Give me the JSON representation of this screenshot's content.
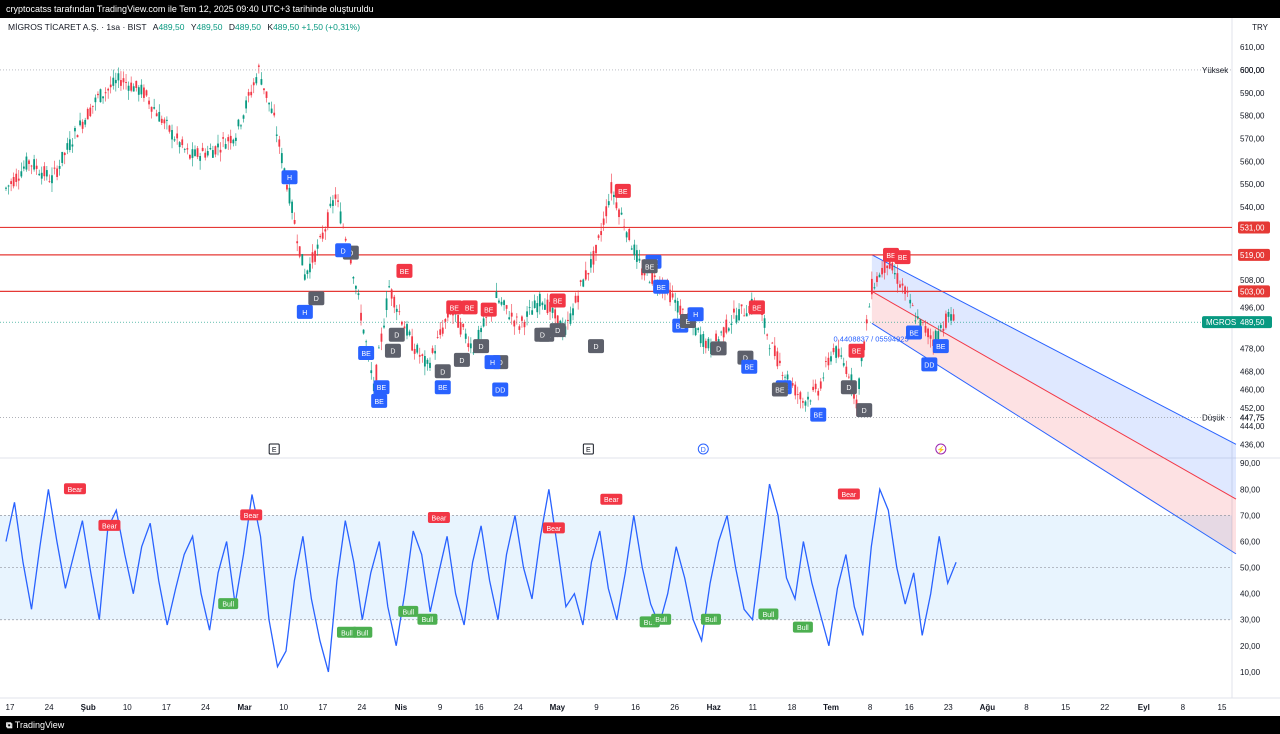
{
  "header": {
    "attribution": "cryptocatss tarafından TradingView.com ile Tem 12, 2025 09:40 UTC+3 tarihinde oluşturuldu"
  },
  "symbol": {
    "name": "MİGROS TİCARET A.Ş. · 1sa · BIST",
    "open_label": "A",
    "open": "489,50",
    "high_label": "Y",
    "high": "489,50",
    "low_label": "D",
    "low": "489,50",
    "close_label": "K",
    "close": "489,50",
    "change": "+1,50 (+0,31%)",
    "currency": "TRY"
  },
  "footer": {
    "brand": "TradingView"
  },
  "colors": {
    "up": "#089981",
    "down": "#f23645",
    "rsi": "#2962ff",
    "level_line": "#e53935",
    "badge_bear": "#f23645",
    "badge_bull": "#4caf50",
    "badge_blue": "#2962ff",
    "badge_gray": "#5d606b"
  },
  "chart_data": [
    {
      "type": "candlestick",
      "title": "MİGROS TİCARET A.Ş. · 1sa · BIST",
      "ylim": [
        430,
        614
      ],
      "y_ticks": [
        "610,00",
        "600,00",
        "590,00",
        "580,00",
        "570,00",
        "560,00",
        "550,00",
        "540,00",
        "531,00",
        "519,00",
        "508,00",
        "503,00",
        "496,00",
        "489,50",
        "478,00",
        "468,00",
        "460,00",
        "452,00",
        "447,75",
        "444,00",
        "436,00"
      ],
      "x_ticks": [
        "17",
        "24",
        "Şub",
        "10",
        "17",
        "24",
        "Mar",
        "10",
        "17",
        "24",
        "Nis",
        "9",
        "16",
        "24",
        "May",
        "9",
        "16",
        "26",
        "Haz",
        "11",
        "18",
        "Tem",
        "8",
        "16",
        "23",
        "Ağu",
        "8",
        "15",
        "22",
        "Eyl",
        "8",
        "15"
      ],
      "price_path": [
        {
          "x": 0,
          "y": 548
        },
        {
          "x": 3,
          "y": 560
        },
        {
          "x": 6,
          "y": 552
        },
        {
          "x": 9,
          "y": 572
        },
        {
          "x": 12,
          "y": 588
        },
        {
          "x": 15,
          "y": 596
        },
        {
          "x": 18,
          "y": 590
        },
        {
          "x": 21,
          "y": 575
        },
        {
          "x": 24,
          "y": 562
        },
        {
          "x": 27,
          "y": 565
        },
        {
          "x": 30,
          "y": 572
        },
        {
          "x": 33,
          "y": 600
        },
        {
          "x": 35,
          "y": 578
        },
        {
          "x": 37,
          "y": 545
        },
        {
          "x": 39,
          "y": 510
        },
        {
          "x": 41,
          "y": 524
        },
        {
          "x": 43,
          "y": 545
        },
        {
          "x": 45,
          "y": 518
        },
        {
          "x": 47,
          "y": 480
        },
        {
          "x": 48,
          "y": 460
        },
        {
          "x": 50,
          "y": 505
        },
        {
          "x": 53,
          "y": 480
        },
        {
          "x": 55,
          "y": 470
        },
        {
          "x": 58,
          "y": 495
        },
        {
          "x": 61,
          "y": 478
        },
        {
          "x": 64,
          "y": 500
        },
        {
          "x": 67,
          "y": 488
        },
        {
          "x": 70,
          "y": 500
        },
        {
          "x": 73,
          "y": 485
        },
        {
          "x": 75,
          "y": 505
        },
        {
          "x": 77,
          "y": 520
        },
        {
          "x": 79,
          "y": 548
        },
        {
          "x": 81,
          "y": 530
        },
        {
          "x": 83,
          "y": 512
        },
        {
          "x": 86,
          "y": 505
        },
        {
          "x": 89,
          "y": 490
        },
        {
          "x": 92,
          "y": 478
        },
        {
          "x": 95,
          "y": 492
        },
        {
          "x": 98,
          "y": 498
        },
        {
          "x": 100,
          "y": 478
        },
        {
          "x": 102,
          "y": 465
        },
        {
          "x": 104,
          "y": 455
        },
        {
          "x": 106,
          "y": 460
        },
        {
          "x": 108,
          "y": 478
        },
        {
          "x": 110,
          "y": 468
        },
        {
          "x": 111,
          "y": 455
        },
        {
          "x": 113,
          "y": 505
        },
        {
          "x": 115,
          "y": 516
        },
        {
          "x": 117,
          "y": 505
        },
        {
          "x": 119,
          "y": 490
        },
        {
          "x": 121,
          "y": 482
        },
        {
          "x": 123,
          "y": 492
        },
        {
          "x": 124,
          "y": 489.5
        }
      ],
      "yuksek": {
        "label": "Yüksek",
        "value": "600,00",
        "price": 600
      },
      "dusuk": {
        "label": "Düşük",
        "value": "447,75",
        "price": 447.75
      },
      "last_price": {
        "label": "MGROS",
        "value": "489,50",
        "price": 489.5
      },
      "levels": [
        {
          "price": 531,
          "label": "531,00"
        },
        {
          "price": 519,
          "label": "519,00"
        },
        {
          "price": 503,
          "label": "503,00"
        }
      ],
      "channel_label": "0.4408837 / 05594925",
      "events": [
        {
          "label": "E",
          "x": 35
        },
        {
          "label": "E",
          "x": 76
        },
        {
          "label": "D",
          "x": 91
        },
        {
          "label": "⚡",
          "x": 122
        }
      ],
      "signals": [
        {
          "label": "H",
          "x": 37,
          "price": 553,
          "kind": "blue"
        },
        {
          "label": "H",
          "x": 39,
          "price": 494,
          "kind": "blue"
        },
        {
          "label": "D",
          "x": 40.5,
          "price": 500,
          "kind": "gray"
        },
        {
          "label": "D",
          "x": 45,
          "price": 520,
          "kind": "gray"
        },
        {
          "label": "D",
          "x": 44,
          "price": 521,
          "kind": "blue"
        },
        {
          "label": "BE",
          "x": 47,
          "price": 476,
          "kind": "blue"
        },
        {
          "label": "BE",
          "x": 49,
          "price": 461,
          "kind": "blue"
        },
        {
          "label": "BE",
          "x": 48.7,
          "price": 455,
          "kind": "blue"
        },
        {
          "label": "BE",
          "x": 52,
          "price": 512,
          "kind": "red"
        },
        {
          "label": "D",
          "x": 51,
          "price": 484,
          "kind": "gray"
        },
        {
          "label": "D",
          "x": 50.5,
          "price": 477,
          "kind": "gray"
        },
        {
          "label": "BE",
          "x": 58.5,
          "price": 496,
          "kind": "red"
        },
        {
          "label": "BE",
          "x": 60.5,
          "price": 496,
          "kind": "red"
        },
        {
          "label": "BE",
          "x": 63,
          "price": 495,
          "kind": "red"
        },
        {
          "label": "D",
          "x": 57,
          "price": 468,
          "kind": "gray"
        },
        {
          "label": "D",
          "x": 59.5,
          "price": 473,
          "kind": "gray"
        },
        {
          "label": "D",
          "x": 62,
          "price": 479,
          "kind": "gray"
        },
        {
          "label": "D",
          "x": 64.5,
          "price": 472,
          "kind": "gray"
        },
        {
          "label": "BE",
          "x": 57,
          "price": 461,
          "kind": "blue"
        },
        {
          "label": "H",
          "x": 63.5,
          "price": 472,
          "kind": "blue"
        },
        {
          "label": "DD",
          "x": 64.5,
          "price": 460,
          "kind": "blue"
        },
        {
          "label": "BE",
          "x": 72,
          "price": 499,
          "kind": "red"
        },
        {
          "label": "BE",
          "x": 70.5,
          "price": 484,
          "kind": "gray"
        },
        {
          "label": "D",
          "x": 70,
          "price": 484,
          "kind": "gray"
        },
        {
          "label": "D",
          "x": 72,
          "price": 486,
          "kind": "gray"
        },
        {
          "label": "D",
          "x": 77,
          "price": 479,
          "kind": "gray"
        },
        {
          "label": "BE",
          "x": 80.5,
          "price": 547,
          "kind": "red"
        },
        {
          "label": "BE",
          "x": 84.5,
          "price": 516,
          "kind": "blue"
        },
        {
          "label": "BE",
          "x": 84,
          "price": 514,
          "kind": "gray"
        },
        {
          "label": "BE",
          "x": 85.5,
          "price": 505,
          "kind": "blue"
        },
        {
          "label": "BE",
          "x": 88,
          "price": 488,
          "kind": "blue"
        },
        {
          "label": "E",
          "x": 89,
          "price": 490,
          "kind": "gray"
        },
        {
          "label": "H",
          "x": 90,
          "price": 493,
          "kind": "blue"
        },
        {
          "label": "BE",
          "x": 98,
          "price": 496,
          "kind": "red"
        },
        {
          "label": "D",
          "x": 93,
          "price": 478,
          "kind": "gray"
        },
        {
          "label": "D",
          "x": 96.5,
          "price": 474,
          "kind": "gray"
        },
        {
          "label": "BE",
          "x": 97,
          "price": 470,
          "kind": "blue"
        },
        {
          "label": "BE",
          "x": 101.5,
          "price": 461,
          "kind": "blue"
        },
        {
          "label": "BE",
          "x": 101,
          "price": 460,
          "kind": "gray"
        },
        {
          "label": "BE",
          "x": 106,
          "price": 449,
          "kind": "blue"
        },
        {
          "label": "BE",
          "x": 111,
          "price": 477,
          "kind": "red"
        },
        {
          "label": "D",
          "x": 110,
          "price": 461,
          "kind": "gray"
        },
        {
          "label": "D",
          "x": 112,
          "price": 451,
          "kind": "gray"
        },
        {
          "label": "BE",
          "x": 115.5,
          "price": 519,
          "kind": "red"
        },
        {
          "label": "BE",
          "x": 117,
          "price": 518,
          "kind": "red"
        },
        {
          "label": "BE",
          "x": 118.5,
          "price": 485,
          "kind": "blue"
        },
        {
          "label": "DD",
          "x": 120.5,
          "price": 471,
          "kind": "blue"
        },
        {
          "label": "BE",
          "x": 122,
          "price": 479,
          "kind": "blue"
        }
      ]
    },
    {
      "type": "line",
      "ylim": [
        0,
        92
      ],
      "y_ticks": [
        "90,00",
        "80,00",
        "70,00",
        "60,00",
        "50,00",
        "40,00",
        "30,00",
        "20,00",
        "10,00"
      ],
      "band": [
        30,
        70
      ],
      "midline": 50,
      "series": [
        {
          "values": [
            60,
            75,
            52,
            34,
            58,
            80,
            60,
            42,
            55,
            68,
            48,
            30,
            65,
            72,
            55,
            40,
            58,
            67,
            45,
            28,
            42,
            55,
            62,
            40,
            26,
            48,
            60,
            36,
            55,
            78,
            62,
            30,
            12,
            18,
            45,
            62,
            38,
            22,
            10,
            45,
            68,
            52,
            30,
            48,
            60,
            35,
            20,
            40,
            64,
            55,
            33,
            48,
            62,
            40,
            28,
            52,
            66,
            45,
            30,
            55,
            70,
            50,
            38,
            62,
            80,
            58,
            35,
            40,
            28,
            52,
            64,
            42,
            30,
            48,
            70,
            50,
            36,
            28,
            40,
            58,
            46,
            30,
            22,
            44,
            60,
            70,
            50,
            34,
            30,
            55,
            82,
            70,
            46,
            38,
            60,
            44,
            32,
            20,
            42,
            55,
            35,
            24,
            58,
            80,
            72,
            50,
            36,
            48,
            24,
            40,
            62,
            44,
            52
          ]
        }
      ],
      "bear_labels": [
        {
          "label": "Bear",
          "x": 9,
          "y": 80
        },
        {
          "label": "Bear",
          "x": 13.5,
          "y": 66
        },
        {
          "label": "Bear",
          "x": 32,
          "y": 70
        },
        {
          "label": "Bear",
          "x": 56.5,
          "y": 69
        },
        {
          "label": "Bear",
          "x": 71.5,
          "y": 65
        },
        {
          "label": "Bear",
          "x": 79,
          "y": 76
        },
        {
          "label": "Bear",
          "x": 110,
          "y": 78
        }
      ],
      "bull_labels": [
        {
          "label": "Bull",
          "x": 29,
          "y": 36
        },
        {
          "label": "Bull",
          "x": 44.5,
          "y": 25
        },
        {
          "label": "Bull",
          "x": 46.5,
          "y": 25
        },
        {
          "label": "Bull",
          "x": 52.5,
          "y": 33
        },
        {
          "label": "Bull",
          "x": 55,
          "y": 30
        },
        {
          "label": "Bull",
          "x": 84,
          "y": 29
        },
        {
          "label": "Bull",
          "x": 85.5,
          "y": 30
        },
        {
          "label": "Bull",
          "x": 92,
          "y": 30
        },
        {
          "label": "Bull",
          "x": 99.5,
          "y": 32
        },
        {
          "label": "Bull",
          "x": 104,
          "y": 27
        }
      ]
    }
  ]
}
